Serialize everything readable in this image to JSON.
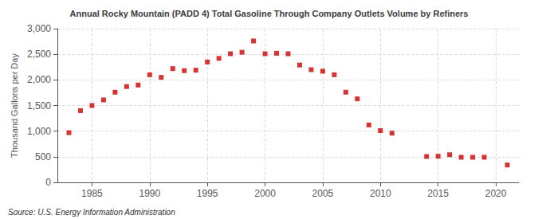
{
  "chart_data": {
    "type": "scatter",
    "title": "Annual Rocky Mountain (PADD 4) Total Gasoline Through Company Outlets Volume by Refiners",
    "ylabel": "Thousand Gallons per Day",
    "annotations": [
      "Source: U.S. Energy Information Administration"
    ],
    "x": [
      1983,
      1984,
      1985,
      1986,
      1987,
      1988,
      1989,
      1990,
      1991,
      1992,
      1993,
      1994,
      1995,
      1996,
      1997,
      1998,
      1999,
      2000,
      2001,
      2002,
      2003,
      2004,
      2005,
      2006,
      2007,
      2008,
      2009,
      2010,
      2011,
      2014,
      2015,
      2016,
      2017,
      2018,
      2019,
      2021
    ],
    "values": [
      970,
      1400,
      1500,
      1610,
      1760,
      1870,
      1900,
      2100,
      2050,
      2220,
      2180,
      2190,
      2350,
      2420,
      2510,
      2540,
      2760,
      2510,
      2520,
      2510,
      2290,
      2200,
      2170,
      2100,
      1760,
      1630,
      1120,
      1010,
      960,
      505,
      510,
      540,
      490,
      490,
      490,
      340
    ],
    "color": "#cc0000",
    "marker": "square",
    "xlim": [
      1982,
      2022
    ],
    "ylim": [
      0,
      3000
    ],
    "xticks": [
      1985,
      1990,
      1995,
      2000,
      2005,
      2010,
      2015,
      2020
    ],
    "yticks": [
      0,
      500,
      {
        "value": 1000,
        "label": "1,000"
      },
      {
        "value": 1500,
        "label": "1,500"
      },
      {
        "value": 2000,
        "label": "2,000"
      },
      {
        "value": 2500,
        "label": "2,500"
      },
      {
        "value": 3000,
        "label": "3,000"
      }
    ],
    "grid": true
  }
}
